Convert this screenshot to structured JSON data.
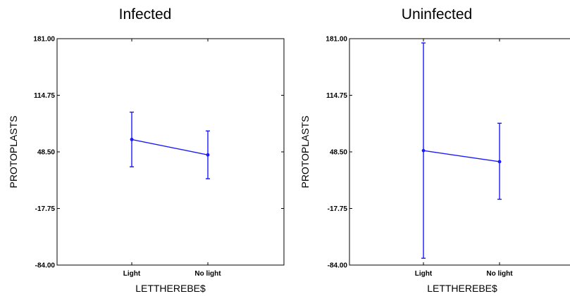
{
  "chart_data": [
    {
      "type": "line",
      "title": "Infected",
      "xlabel": "LETTHEREBE$",
      "ylabel": "PROTOPLASTS",
      "ylim": [
        -84.0,
        181.0
      ],
      "yticks": [
        "181.00",
        "114.75",
        "48.50",
        "-17.75",
        "-84.00"
      ],
      "categories": [
        "Light",
        "No light"
      ],
      "series": [
        {
          "values": [
            63,
            45
          ],
          "lower": [
            31,
            17
          ],
          "upper": [
            95,
            73
          ]
        }
      ]
    },
    {
      "type": "line",
      "title": "Uninfected",
      "xlabel": "LETTHEREBE$",
      "ylabel": "PROTOPLASTS",
      "ylim": [
        -84.0,
        181.0
      ],
      "yticks": [
        "181.00",
        "114.75",
        "48.50",
        "-17.75",
        "-84.00"
      ],
      "categories": [
        "Light",
        "No light"
      ],
      "series": [
        {
          "values": [
            50,
            37
          ],
          "lower": [
            -76,
            -7
          ],
          "upper": [
            176,
            82
          ]
        }
      ]
    }
  ]
}
